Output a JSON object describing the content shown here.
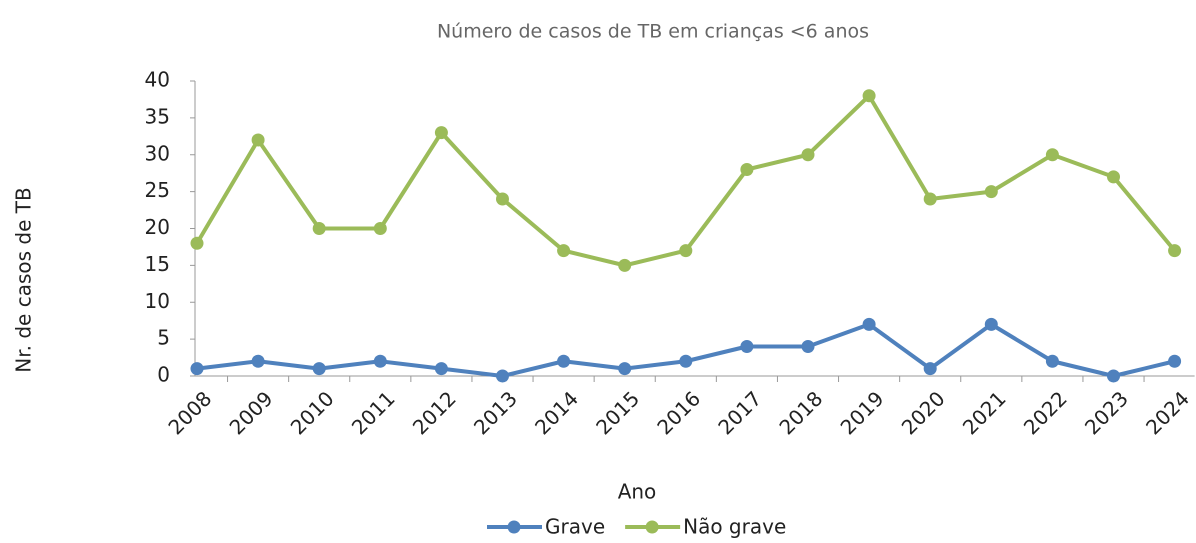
{
  "chart_data": {
    "type": "line",
    "title": "Número de casos de TB em crianças <6 anos",
    "x_label": "Ano",
    "y_label": "Nr. de casos de TB",
    "categories": [
      "2008",
      "2009",
      "2010",
      "2011",
      "2012",
      "2013",
      "2014",
      "2015",
      "2016",
      "2017",
      "2018",
      "2019",
      "2020",
      "2021",
      "2022",
      "2023",
      "2024"
    ],
    "series": [
      {
        "name": "Grave",
        "color": "#4f81bd",
        "values": [
          1,
          2,
          1,
          2,
          1,
          0,
          2,
          1,
          2,
          4,
          4,
          7,
          1,
          7,
          2,
          0,
          2
        ]
      },
      {
        "name": "Não grave",
        "color": "#9bbb59",
        "values": [
          18,
          32,
          20,
          20,
          33,
          24,
          17,
          15,
          17,
          28,
          30,
          38,
          24,
          25,
          30,
          27,
          17
        ]
      }
    ],
    "ylim": [
      0,
      40
    ],
    "yticks": [
      0,
      5,
      10,
      15,
      20,
      25,
      30,
      35,
      40
    ],
    "legend": "bottom"
  }
}
